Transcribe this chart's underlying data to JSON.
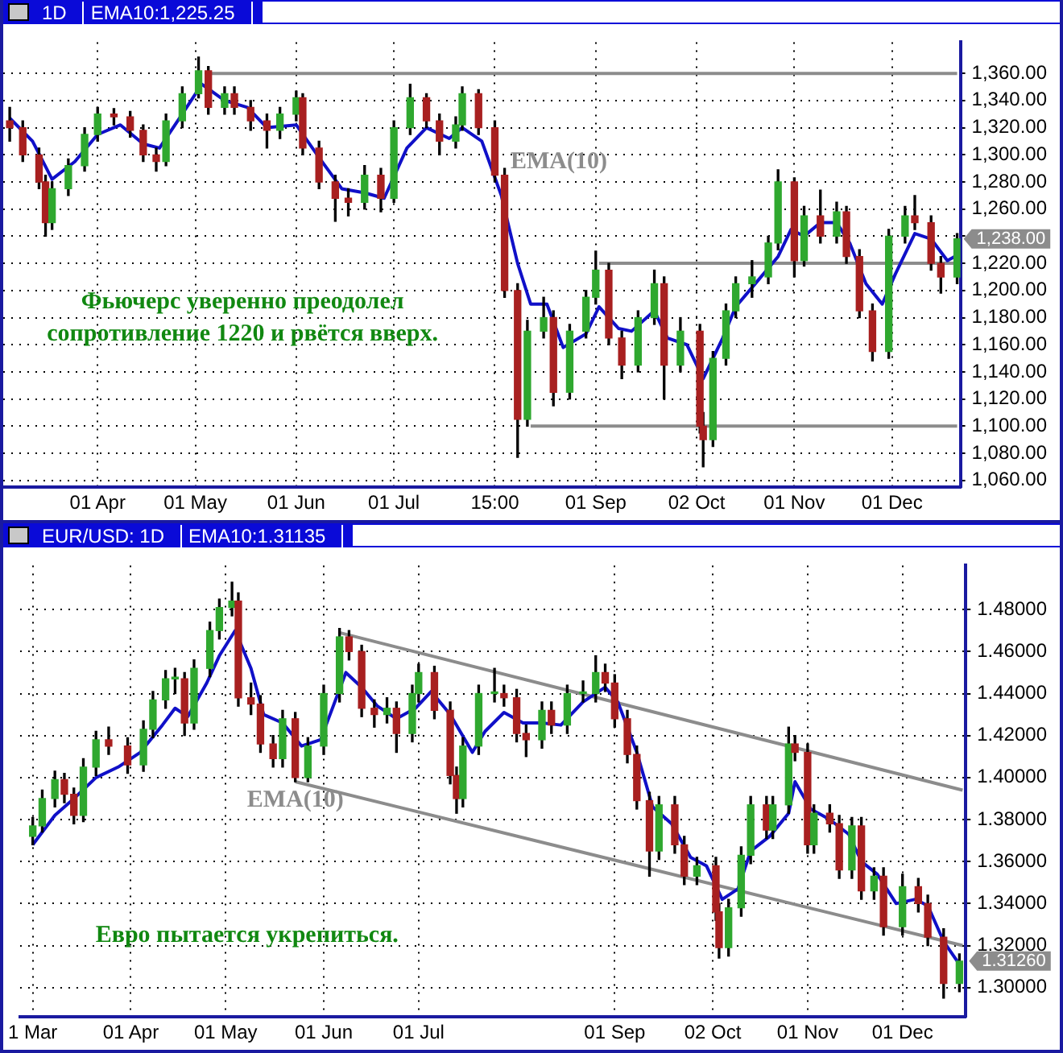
{
  "chart_data": [
    {
      "type": "candlestick",
      "title": "1D",
      "subtitle": "EMA10:1,225.25",
      "x": [
        "--03-05",
        "--03-09",
        "--03-14",
        "--03-16",
        "--03-18",
        "--03-23",
        "--03-28",
        "--04-01",
        "--04-06",
        "--04-11",
        "--04-15",
        "--04-19",
        "--04-22",
        "--04-27",
        "--05-02",
        "--05-05",
        "--05-10",
        "--05-13",
        "--05-18",
        "--05-23",
        "--05-27",
        "--06-01",
        "--06-03",
        "--06-08",
        "--06-13",
        "--06-17",
        "--06-22",
        "--06-27",
        "--07-01",
        "--07-06",
        "--07-11",
        "--07-15",
        "--07-20",
        "--07-22",
        "--07-27",
        "--08-01",
        "--08-04",
        "--08-08",
        "--08-11",
        "--08-16",
        "--08-19",
        "--08-24",
        "--08-29",
        "--09-01",
        "--09-05",
        "--09-09",
        "--09-14",
        "--09-19",
        "--09-22",
        "--09-27",
        "--10-03",
        "--10-04",
        "--10-07",
        "--10-11",
        "--10-14",
        "--10-19",
        "--10-24",
        "--10-27",
        "--11-01",
        "--11-04",
        "--11-09",
        "--11-14",
        "--11-17",
        "--11-21",
        "--11-25",
        "--11-30",
        "--12-05",
        "--12-08",
        "--12-13",
        "--12-16",
        "--12-21"
      ],
      "ohlc": [
        [
          1325,
          1335,
          1310,
          1320
        ],
        [
          1320,
          1325,
          1295,
          1300
        ],
        [
          1300,
          1305,
          1275,
          1280
        ],
        [
          1280,
          1285,
          1240,
          1250
        ],
        [
          1250,
          1280,
          1245,
          1275
        ],
        [
          1275,
          1297,
          1270,
          1292
        ],
        [
          1292,
          1320,
          1288,
          1315
        ],
        [
          1315,
          1335,
          1310,
          1330
        ],
        [
          1330,
          1334,
          1322,
          1328
        ],
        [
          1328,
          1332,
          1313,
          1318
        ],
        [
          1318,
          1322,
          1295,
          1300
        ],
        [
          1300,
          1305,
          1288,
          1295
        ],
        [
          1295,
          1330,
          1292,
          1325
        ],
        [
          1325,
          1350,
          1320,
          1345
        ],
        [
          1345,
          1372,
          1342,
          1362
        ],
        [
          1362,
          1365,
          1330,
          1335
        ],
        [
          1335,
          1350,
          1330,
          1345
        ],
        [
          1345,
          1350,
          1330,
          1335
        ],
        [
          1335,
          1340,
          1318,
          1325
        ],
        [
          1325,
          1330,
          1305,
          1318
        ],
        [
          1318,
          1335,
          1312,
          1330
        ],
        [
          1330,
          1347,
          1325,
          1342
        ],
        [
          1342,
          1345,
          1300,
          1305
        ],
        [
          1305,
          1310,
          1275,
          1280
        ],
        [
          1280,
          1285,
          1251,
          1268
        ],
        [
          1268,
          1275,
          1255,
          1265
        ],
        [
          1265,
          1292,
          1260,
          1285
        ],
        [
          1285,
          1290,
          1258,
          1268
        ],
        [
          1268,
          1325,
          1265,
          1320
        ],
        [
          1320,
          1352,
          1315,
          1342
        ],
        [
          1342,
          1345,
          1320,
          1325
        ],
        [
          1325,
          1330,
          1300,
          1310
        ],
        [
          1310,
          1328,
          1305,
          1322
        ],
        [
          1322,
          1350,
          1318,
          1345
        ],
        [
          1345,
          1348,
          1315,
          1320
        ],
        [
          1320,
          1325,
          1280,
          1285
        ],
        [
          1285,
          1290,
          1195,
          1200
        ],
        [
          1200,
          1205,
          1077,
          1105
        ],
        [
          1105,
          1178,
          1100,
          1170
        ],
        [
          1170,
          1195,
          1165,
          1180
        ],
        [
          1180,
          1185,
          1115,
          1125
        ],
        [
          1125,
          1175,
          1120,
          1170
        ],
        [
          1170,
          1200,
          1165,
          1195
        ],
        [
          1195,
          1229,
          1190,
          1215
        ],
        [
          1215,
          1220,
          1160,
          1165
        ],
        [
          1165,
          1170,
          1135,
          1145
        ],
        [
          1145,
          1185,
          1140,
          1180
        ],
        [
          1180,
          1215,
          1175,
          1205
        ],
        [
          1205,
          1210,
          1120,
          1145
        ],
        [
          1145,
          1180,
          1140,
          1170
        ],
        [
          1170,
          1175,
          1095,
          1100
        ],
        [
          1100,
          1110,
          1070,
          1090
        ],
        [
          1090,
          1155,
          1085,
          1150
        ],
        [
          1150,
          1190,
          1145,
          1185
        ],
        [
          1185,
          1210,
          1180,
          1205
        ],
        [
          1205,
          1222,
          1195,
          1210
        ],
        [
          1210,
          1240,
          1205,
          1235
        ],
        [
          1235,
          1289,
          1230,
          1280
        ],
        [
          1280,
          1283,
          1210,
          1222
        ],
        [
          1222,
          1262,
          1218,
          1255
        ],
        [
          1255,
          1274,
          1235,
          1240
        ],
        [
          1240,
          1265,
          1235,
          1258
        ],
        [
          1258,
          1262,
          1220,
          1225
        ],
        [
          1225,
          1230,
          1180,
          1185
        ],
        [
          1185,
          1190,
          1148,
          1155
        ],
        [
          1155,
          1245,
          1150,
          1240
        ],
        [
          1240,
          1262,
          1235,
          1255
        ],
        [
          1255,
          1270,
          1245,
          1250
        ],
        [
          1250,
          1255,
          1215,
          1220
        ],
        [
          1220,
          1225,
          1198,
          1210
        ],
        [
          1210,
          1242,
          1205,
          1238
        ]
      ],
      "series": [
        {
          "type": "line",
          "name": "EMA(10)",
          "color": "#1010c8",
          "x": [
            "--03-05",
            "--03-12",
            "--03-18",
            "--03-25",
            "--04-01",
            "--04-08",
            "--04-15",
            "--04-20",
            "--04-27",
            "--05-03",
            "--05-10",
            "--05-17",
            "--05-23",
            "--06-01",
            "--06-08",
            "--06-15",
            "--06-22",
            "--06-28",
            "--07-05",
            "--07-11",
            "--07-18",
            "--07-22",
            "--07-28",
            "--08-03",
            "--08-08",
            "--08-12",
            "--08-17",
            "--08-22",
            "--08-29",
            "--09-02",
            "--09-08",
            "--09-12",
            "--09-19",
            "--09-23",
            "--09-29",
            "--10-04",
            "--10-10",
            "--10-14",
            "--10-20",
            "--10-27",
            "--10-31",
            "--11-04",
            "--11-09",
            "--11-14",
            "--11-18",
            "--11-23",
            "--11-28",
            "--12-02",
            "--12-08",
            "--12-13",
            "--12-18",
            "--12-21"
          ],
          "values": [
            1327,
            1310,
            1282,
            1295,
            1315,
            1322,
            1308,
            1305,
            1330,
            1352,
            1340,
            1335,
            1320,
            1322,
            1298,
            1275,
            1272,
            1268,
            1305,
            1320,
            1312,
            1320,
            1310,
            1270,
            1220,
            1190,
            1190,
            1158,
            1168,
            1188,
            1172,
            1170,
            1185,
            1165,
            1160,
            1135,
            1165,
            1188,
            1205,
            1225,
            1245,
            1240,
            1250,
            1250,
            1235,
            1205,
            1190,
            1212,
            1242,
            1238,
            1222,
            1226
          ]
        },
        {
          "type": "line",
          "color": "#8c8c8c",
          "x": [
            "--05-04",
            "--12-21"
          ],
          "values": [
            1360,
            1360
          ]
        },
        {
          "type": "line",
          "color": "#8c8c8c",
          "x": [
            "--09-02",
            "--12-21"
          ],
          "values": [
            1220,
            1220
          ]
        },
        {
          "type": "line",
          "color": "#8c8c8c",
          "x": [
            "--08-12",
            "--12-21"
          ],
          "values": [
            1100,
            1100
          ]
        }
      ],
      "xlim": [
        "--03-03",
        "--12-22"
      ],
      "xticks": [
        {
          "value": "--04-01",
          "label": "01 Apr"
        },
        {
          "value": "--05-01",
          "label": "01 May"
        },
        {
          "value": "--06-01",
          "label": "01 Jun"
        },
        {
          "value": "--07-01",
          "label": "01 Jul"
        },
        {
          "value": "--08-01",
          "label": "15:00"
        },
        {
          "value": "--09-01",
          "label": "01 Sep"
        },
        {
          "value": "--10-02",
          "label": "02 Oct"
        },
        {
          "value": "--11-01",
          "label": "01 Nov"
        },
        {
          "value": "--12-01",
          "label": "01 Dec"
        }
      ],
      "ylim": [
        1055,
        1383
      ],
      "yticks": [
        {
          "value": 1060,
          "label": "1,060.00"
        },
        {
          "value": 1080,
          "label": "1,080.00"
        },
        {
          "value": 1100,
          "label": "1,100.00"
        },
        {
          "value": 1120,
          "label": "1,120.00"
        },
        {
          "value": 1140,
          "label": "1,140.00"
        },
        {
          "value": 1160,
          "label": "1,160.00"
        },
        {
          "value": 1180,
          "label": "1,180.00"
        },
        {
          "value": 1200,
          "label": "1,200.00"
        },
        {
          "value": 1220,
          "label": "1,220.00"
        },
        {
          "value": 1240,
          "label": null
        },
        {
          "value": 1260,
          "label": "1,260.00"
        },
        {
          "value": 1280,
          "label": "1,280.00"
        },
        {
          "value": 1300,
          "label": "1,300.00"
        },
        {
          "value": 1320,
          "label": "1,320.00"
        },
        {
          "value": 1340,
          "label": "1,340.00"
        },
        {
          "value": 1360,
          "label": "1,360.00"
        }
      ],
      "grid": true,
      "marker": "none",
      "annotations": [
        "Фьючерс уверенно преодолел сопротивление 1220 и рвётся вверх.",
        "1,238.00"
      ]
    },
    {
      "type": "candlestick",
      "title": "EUR/USD: 1D",
      "subtitle": "EMA10:1.31135",
      "x": [
        "--03-01",
        "--03-04",
        "--03-08",
        "--03-11",
        "--03-14",
        "--03-17",
        "--03-21",
        "--03-25",
        "--03-31",
        "--04-05",
        "--04-08",
        "--04-12",
        "--04-15",
        "--04-18",
        "--04-21",
        "--04-26",
        "--04-29",
        "--05-03",
        "--05-05",
        "--05-09",
        "--05-12",
        "--05-16",
        "--05-19",
        "--05-23",
        "--05-27",
        "--06-01",
        "--06-06",
        "--06-09",
        "--06-13",
        "--06-17",
        "--06-21",
        "--06-24",
        "--06-29",
        "--07-01",
        "--07-06",
        "--07-11",
        "--07-13",
        "--07-15",
        "--07-20",
        "--07-25",
        "--07-28",
        "--08-01",
        "--08-04",
        "--08-09",
        "--08-12",
        "--08-17",
        "--08-22",
        "--08-26",
        "--08-29",
        "--09-01",
        "--09-05",
        "--09-08",
        "--09-12",
        "--09-15",
        "--09-20",
        "--09-23",
        "--09-27",
        "--10-03",
        "--10-04",
        "--10-07",
        "--10-11",
        "--10-14",
        "--10-19",
        "--10-21",
        "--10-26",
        "--10-28",
        "--11-01",
        "--11-03",
        "--11-08",
        "--11-11",
        "--11-15",
        "--11-18",
        "--11-22",
        "--11-25",
        "--12-01",
        "--12-06",
        "--12-09",
        "--12-14",
        "--12-19"
      ],
      "ohlc": [
        [
          1.372,
          1.381,
          1.368,
          1.377
        ],
        [
          1.377,
          1.394,
          1.374,
          1.39
        ],
        [
          1.39,
          1.403,
          1.386,
          1.399
        ],
        [
          1.399,
          1.402,
          1.388,
          1.392
        ],
        [
          1.392,
          1.395,
          1.378,
          1.382
        ],
        [
          1.382,
          1.409,
          1.379,
          1.405
        ],
        [
          1.405,
          1.422,
          1.401,
          1.418
        ],
        [
          1.418,
          1.424,
          1.411,
          1.415
        ],
        [
          1.415,
          1.419,
          1.402,
          1.406
        ],
        [
          1.406,
          1.427,
          1.403,
          1.423
        ],
        [
          1.423,
          1.441,
          1.419,
          1.437
        ],
        [
          1.437,
          1.451,
          1.433,
          1.447
        ],
        [
          1.447,
          1.452,
          1.44,
          1.447
        ],
        [
          1.447,
          1.45,
          1.42,
          1.426
        ],
        [
          1.426,
          1.456,
          1.423,
          1.452
        ],
        [
          1.452,
          1.474,
          1.448,
          1.47
        ],
        [
          1.47,
          1.485,
          1.466,
          1.481
        ],
        [
          1.481,
          1.493,
          1.477,
          1.484
        ],
        [
          1.484,
          1.488,
          1.434,
          1.438
        ],
        [
          1.438,
          1.445,
          1.43,
          1.435
        ],
        [
          1.435,
          1.439,
          1.412,
          1.416
        ],
        [
          1.416,
          1.42,
          1.405,
          1.409
        ],
        [
          1.409,
          1.432,
          1.405,
          1.428
        ],
        [
          1.428,
          1.431,
          1.398,
          1.4
        ],
        [
          1.4,
          1.419,
          1.398,
          1.415
        ],
        [
          1.415,
          1.444,
          1.411,
          1.44
        ],
        [
          1.44,
          1.471,
          1.436,
          1.467
        ],
        [
          1.467,
          1.47,
          1.456,
          1.46
        ],
        [
          1.46,
          1.463,
          1.429,
          1.433
        ],
        [
          1.433,
          1.437,
          1.424,
          1.43
        ],
        [
          1.43,
          1.438,
          1.426,
          1.433
        ],
        [
          1.433,
          1.436,
          1.412,
          1.421
        ],
        [
          1.421,
          1.444,
          1.417,
          1.44
        ],
        [
          1.44,
          1.454,
          1.436,
          1.45
        ],
        [
          1.45,
          1.453,
          1.428,
          1.432
        ],
        [
          1.432,
          1.436,
          1.397,
          1.401
        ],
        [
          1.401,
          1.405,
          1.383,
          1.39
        ],
        [
          1.39,
          1.419,
          1.386,
          1.415
        ],
        [
          1.415,
          1.444,
          1.411,
          1.44
        ],
        [
          1.44,
          1.452,
          1.436,
          1.44
        ],
        [
          1.44,
          1.444,
          1.434,
          1.438
        ],
        [
          1.438,
          1.442,
          1.417,
          1.421
        ],
        [
          1.421,
          1.425,
          1.41,
          1.418
        ],
        [
          1.418,
          1.436,
          1.414,
          1.432
        ],
        [
          1.432,
          1.436,
          1.421,
          1.425
        ],
        [
          1.425,
          1.444,
          1.421,
          1.44
        ],
        [
          1.44,
          1.446,
          1.436,
          1.44
        ],
        [
          1.44,
          1.458,
          1.436,
          1.45
        ],
        [
          1.45,
          1.454,
          1.441,
          1.445
        ],
        [
          1.445,
          1.449,
          1.424,
          1.428
        ],
        [
          1.428,
          1.432,
          1.407,
          1.411
        ],
        [
          1.411,
          1.415,
          1.385,
          1.389
        ],
        [
          1.389,
          1.393,
          1.353,
          1.365
        ],
        [
          1.365,
          1.391,
          1.361,
          1.387
        ],
        [
          1.387,
          1.391,
          1.364,
          1.368
        ],
        [
          1.368,
          1.372,
          1.349,
          1.353
        ],
        [
          1.353,
          1.362,
          1.349,
          1.358
        ],
        [
          1.358,
          1.362,
          1.332,
          1.336
        ],
        [
          1.336,
          1.34,
          1.314,
          1.319
        ],
        [
          1.319,
          1.342,
          1.315,
          1.338
        ],
        [
          1.338,
          1.367,
          1.334,
          1.363
        ],
        [
          1.363,
          1.391,
          1.359,
          1.387
        ],
        [
          1.387,
          1.391,
          1.371,
          1.375
        ],
        [
          1.375,
          1.391,
          1.371,
          1.387
        ],
        [
          1.387,
          1.424,
          1.383,
          1.416
        ],
        [
          1.416,
          1.42,
          1.408,
          1.412
        ],
        [
          1.412,
          1.416,
          1.364,
          1.368
        ],
        [
          1.368,
          1.387,
          1.364,
          1.383
        ],
        [
          1.383,
          1.387,
          1.374,
          1.378
        ],
        [
          1.378,
          1.382,
          1.352,
          1.356
        ],
        [
          1.356,
          1.381,
          1.352,
          1.377
        ],
        [
          1.377,
          1.381,
          1.342,
          1.346
        ],
        [
          1.346,
          1.357,
          1.342,
          1.353
        ],
        [
          1.353,
          1.357,
          1.325,
          1.329
        ],
        [
          1.329,
          1.354,
          1.325,
          1.348
        ],
        [
          1.348,
          1.352,
          1.336,
          1.34
        ],
        [
          1.34,
          1.344,
          1.32,
          1.324
        ],
        [
          1.324,
          1.328,
          1.295,
          1.302
        ],
        [
          1.302,
          1.316,
          1.298,
          1.3126
        ]
      ],
      "series": [
        {
          "type": "line",
          "name": "EMA(10)",
          "color": "#1010c8",
          "x": [
            "--03-01",
            "--03-08",
            "--03-14",
            "--03-21",
            "--03-28",
            "--04-04",
            "--04-11",
            "--04-15",
            "--04-19",
            "--04-25",
            "--04-29",
            "--05-04",
            "--05-09",
            "--05-13",
            "--05-19",
            "--05-25",
            "--05-31",
            "--06-04",
            "--06-08",
            "--06-13",
            "--06-18",
            "--06-24",
            "--06-30",
            "--07-05",
            "--07-11",
            "--07-18",
            "--07-22",
            "--07-28",
            "--08-03",
            "--08-09",
            "--08-15",
            "--08-22",
            "--08-29",
            "--09-02",
            "--09-08",
            "--09-13",
            "--09-19",
            "--09-25",
            "--09-30",
            "--10-05",
            "--10-10",
            "--10-14",
            "--10-20",
            "--10-26",
            "--10-28",
            "--11-02",
            "--11-08",
            "--11-14",
            "--11-18",
            "--11-23",
            "--11-29",
            "--12-05",
            "--12-09",
            "--12-14",
            "--12-19"
          ],
          "values": [
            1.368,
            1.382,
            1.39,
            1.4,
            1.405,
            1.412,
            1.425,
            1.433,
            1.429,
            1.445,
            1.458,
            1.47,
            1.452,
            1.43,
            1.426,
            1.415,
            1.418,
            1.434,
            1.45,
            1.443,
            1.434,
            1.428,
            1.433,
            1.441,
            1.43,
            1.412,
            1.422,
            1.431,
            1.426,
            1.426,
            1.425,
            1.436,
            1.443,
            1.436,
            1.412,
            1.386,
            1.378,
            1.362,
            1.358,
            1.342,
            1.347,
            1.365,
            1.372,
            1.383,
            1.398,
            1.385,
            1.38,
            1.373,
            1.36,
            1.354,
            1.34,
            1.342,
            1.339,
            1.322,
            1.311
          ]
        },
        {
          "type": "line",
          "color": "#8c8c8c",
          "x": [
            "--06-06",
            "--12-20"
          ],
          "values": [
            1.469,
            1.394
          ]
        },
        {
          "type": "line",
          "color": "#8c8c8c",
          "x": [
            "--05-23",
            "--12-20"
          ],
          "values": [
            1.398,
            1.32
          ]
        }
      ],
      "xlim": [
        "--02-25",
        "--12-21"
      ],
      "xticks": [
        {
          "value": "--03-01",
          "label": "1 Mar"
        },
        {
          "value": "--04-01",
          "label": "01 Apr"
        },
        {
          "value": "--05-01",
          "label": "01 May"
        },
        {
          "value": "--06-01",
          "label": "01 Jun"
        },
        {
          "value": "--07-01",
          "label": "01 Jul"
        },
        {
          "value": "--09-01",
          "label": "01 Sep"
        },
        {
          "value": "--10-02",
          "label": "02 Oct"
        },
        {
          "value": "--11-01",
          "label": "01 Nov"
        },
        {
          "value": "--12-01",
          "label": "01 Dec"
        }
      ],
      "ylim": [
        1.286,
        1.501
      ],
      "yticks": [
        {
          "value": 1.3,
          "label": "1.30000"
        },
        {
          "value": 1.32,
          "label": "1.32000"
        },
        {
          "value": 1.34,
          "label": "1.34000"
        },
        {
          "value": 1.36,
          "label": "1.36000"
        },
        {
          "value": 1.38,
          "label": "1.38000"
        },
        {
          "value": 1.4,
          "label": "1.40000"
        },
        {
          "value": 1.42,
          "label": "1.42000"
        },
        {
          "value": 1.44,
          "label": "1.44000"
        },
        {
          "value": 1.46,
          "label": "1.46000"
        },
        {
          "value": 1.48,
          "label": "1.48000"
        }
      ],
      "grid": true,
      "marker": "none",
      "annotations": [
        "Евро пытается укрепиться.",
        "1.31260"
      ]
    }
  ]
}
